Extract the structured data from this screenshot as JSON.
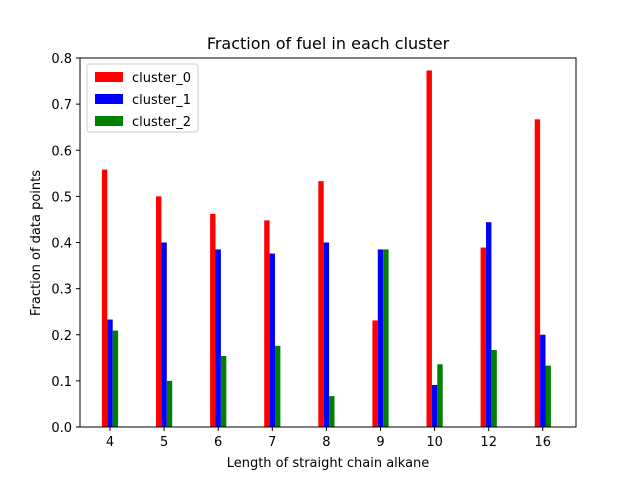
{
  "chart_data": {
    "type": "bar",
    "title": "Fraction of fuel in each cluster",
    "xlabel": "Length of straight chain alkane",
    "ylabel": "Fraction of data points",
    "categories": [
      "4",
      "5",
      "6",
      "7",
      "8",
      "9",
      "10",
      "12",
      "16"
    ],
    "ylim": [
      0,
      0.8
    ],
    "yticks": [
      "0.0",
      "0.1",
      "0.2",
      "0.3",
      "0.4",
      "0.5",
      "0.6",
      "0.7",
      "0.8"
    ],
    "grid": false,
    "legend_position": "top-left",
    "series": [
      {
        "name": "cluster_0",
        "color": "#ff0000",
        "values": [
          0.558,
          0.5,
          0.462,
          0.448,
          0.533,
          0.231,
          0.773,
          0.389,
          0.667
        ]
      },
      {
        "name": "cluster_1",
        "color": "#0000ff",
        "values": [
          0.233,
          0.4,
          0.385,
          0.376,
          0.4,
          0.385,
          0.091,
          0.444,
          0.2
        ]
      },
      {
        "name": "cluster_2",
        "color": "#008000",
        "values": [
          0.209,
          0.1,
          0.154,
          0.176,
          0.067,
          0.385,
          0.136,
          0.167,
          0.133
        ]
      }
    ]
  }
}
